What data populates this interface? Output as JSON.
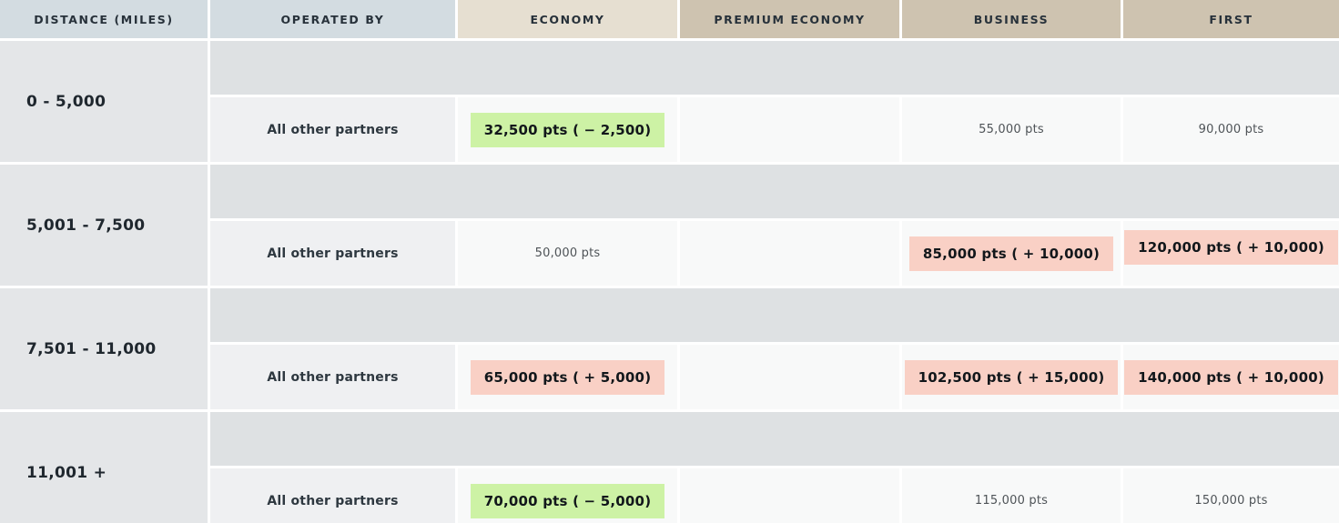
{
  "table": {
    "columns": [
      {
        "label": "DISTANCE (MILES)"
      },
      {
        "label": "OPERATED BY"
      },
      {
        "label": "ECONOMY"
      },
      {
        "label": "PREMIUM ECONOMY"
      },
      {
        "label": "BUSINESS"
      },
      {
        "label": "FIRST"
      }
    ],
    "rows": [
      {
        "distance": "0 - 5,000",
        "operated_by": "All other partners",
        "cells": [
          {
            "column": "ECONOMY",
            "text": "32,500 pts ( − 2,500)",
            "highlight": "decrease"
          },
          {
            "column": "PREMIUM ECONOMY",
            "text": "",
            "highlight": "empty"
          },
          {
            "column": "BUSINESS",
            "text": "55,000 pts",
            "highlight": "none"
          },
          {
            "column": "FIRST",
            "text": "90,000 pts",
            "highlight": "none"
          }
        ]
      },
      {
        "distance": "5,001 - 7,500",
        "operated_by": "All other partners",
        "cells": [
          {
            "column": "ECONOMY",
            "text": "50,000 pts",
            "highlight": "none"
          },
          {
            "column": "PREMIUM ECONOMY",
            "text": "",
            "highlight": "empty"
          },
          {
            "column": "BUSINESS",
            "text": "85,000 pts ( + 10,000)",
            "highlight": "increase"
          },
          {
            "column": "FIRST",
            "text": "120,000 pts ( + 10,000)",
            "highlight": "increase"
          }
        ]
      },
      {
        "distance": "7,501 - 11,000",
        "operated_by": "All other partners",
        "cells": [
          {
            "column": "ECONOMY",
            "text": "65,000 pts ( + 5,000)",
            "highlight": "increase"
          },
          {
            "column": "PREMIUM ECONOMY",
            "text": "",
            "highlight": "empty"
          },
          {
            "column": "BUSINESS",
            "text": "102,500 pts ( + 15,000)",
            "highlight": "increase"
          },
          {
            "column": "FIRST",
            "text": "140,000 pts ( + 10,000)",
            "highlight": "increase"
          }
        ]
      },
      {
        "distance": "11,001 +",
        "operated_by": "All other partners",
        "cells": [
          {
            "column": "ECONOMY",
            "text": "70,000 pts ( − 5,000)",
            "highlight": "decrease"
          },
          {
            "column": "PREMIUM ECONOMY",
            "text": "",
            "highlight": "empty"
          },
          {
            "column": "BUSINESS",
            "text": "115,000 pts",
            "highlight": "none"
          },
          {
            "column": "FIRST",
            "text": "150,000 pts",
            "highlight": "none"
          }
        ]
      }
    ],
    "colors": {
      "header_blue": "#d3dce1",
      "header_tan_light": "#e6dfd1",
      "header_tan_dark": "#cec3b0",
      "distance_cell_bg": "#e4e6e8",
      "band_bg": "#dee1e3",
      "operator_cell_bg": "#eff0f2",
      "value_cell_bg": "#f8f9f9",
      "decrease_highlight": "#cdf2a5",
      "increase_highlight": "#f9d0c5"
    }
  }
}
